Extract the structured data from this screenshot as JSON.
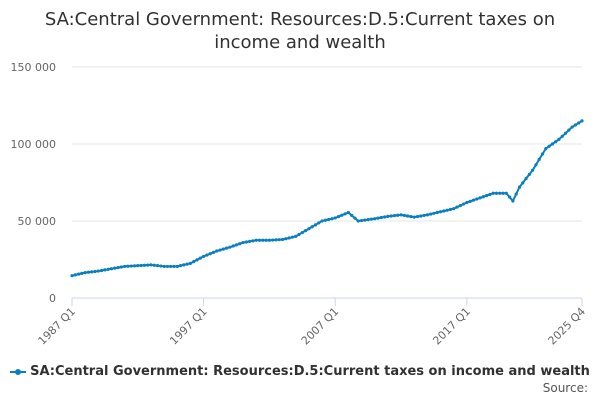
{
  "chart_data": {
    "type": "line",
    "title_lines": [
      "SA:Central Government: Resources:D.5:Current taxes on",
      "income and wealth"
    ],
    "x_labels": [
      "1987 Q1",
      "1997 Q1",
      "2007 Q1",
      "2017 Q1",
      "2025 Q4"
    ],
    "x_label_quarters": [
      1987.0,
      1997.0,
      2007.0,
      2017.0,
      2025.75
    ],
    "x_range": [
      1987.0,
      2025.75
    ],
    "y_ticks": [
      0,
      50000,
      100000,
      150000
    ],
    "y_tick_labels": [
      "0",
      "50 000",
      "100 000",
      "150 000"
    ],
    "ylim": [
      0,
      150000
    ],
    "grid": true,
    "legend_position": "bottom",
    "series": [
      {
        "name": "SA:Central Government: Resources:D.5:Current taxes on income and wealth",
        "color": "#0a7fbf",
        "points": [
          [
            1987.0,
            14500
          ],
          [
            1988.0,
            16500
          ],
          [
            1989.0,
            17500
          ],
          [
            1990.0,
            19000
          ],
          [
            1991.0,
            20500
          ],
          [
            1992.0,
            21000
          ],
          [
            1993.0,
            21500
          ],
          [
            1994.0,
            20500
          ],
          [
            1995.0,
            20500
          ],
          [
            1996.0,
            22500
          ],
          [
            1997.0,
            27000
          ],
          [
            1998.0,
            30500
          ],
          [
            1999.0,
            33000
          ],
          [
            2000.0,
            36000
          ],
          [
            2001.0,
            37500
          ],
          [
            2002.0,
            37500
          ],
          [
            2003.0,
            38000
          ],
          [
            2004.0,
            40000
          ],
          [
            2005.0,
            45000
          ],
          [
            2006.0,
            50000
          ],
          [
            2007.0,
            52000
          ],
          [
            2008.0,
            55500
          ],
          [
            2008.75,
            50000
          ],
          [
            2010.0,
            51500
          ],
          [
            2011.0,
            53000
          ],
          [
            2012.0,
            54000
          ],
          [
            2013.0,
            52500
          ],
          [
            2014.0,
            54000
          ],
          [
            2015.0,
            56000
          ],
          [
            2016.0,
            58000
          ],
          [
            2017.0,
            62000
          ],
          [
            2018.0,
            65000
          ],
          [
            2019.0,
            68000
          ],
          [
            2020.0,
            68000
          ],
          [
            2020.5,
            63000
          ],
          [
            2021.0,
            72000
          ],
          [
            2022.0,
            83000
          ],
          [
            2023.0,
            97000
          ],
          [
            2024.0,
            103000
          ],
          [
            2025.0,
            111000
          ],
          [
            2025.75,
            115000
          ]
        ]
      }
    ],
    "source_label": "Source:"
  }
}
